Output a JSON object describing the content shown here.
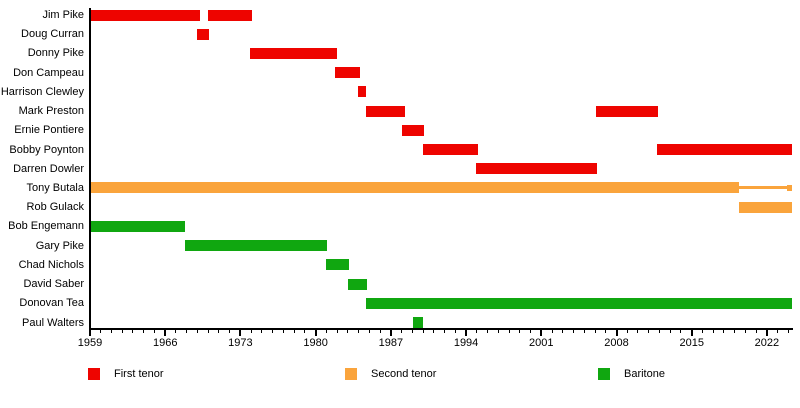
{
  "chart_data": {
    "type": "bar",
    "subtype": "timeline-gantt",
    "title": "",
    "x_axis": {
      "start_year": 1959,
      "end_year": 2024.3,
      "last_tick_year": 2024,
      "minor_tick_interval": 1,
      "major_ticks": [
        1959,
        1966,
        1973,
        1980,
        1987,
        1994,
        2001,
        2008,
        2015,
        2022
      ]
    },
    "legend": [
      {
        "key": "first_tenor",
        "label": "First tenor",
        "color": "#ee0400"
      },
      {
        "key": "second_tenor",
        "label": "Second tenor",
        "color": "#faa43c"
      },
      {
        "key": "baritone",
        "label": "Baritone",
        "color": "#10a710"
      }
    ],
    "rows": [
      {
        "name": "Jim Pike",
        "role": "first_tenor",
        "segments": [
          [
            1959.0,
            1969.25
          ],
          [
            1969.95,
            1974.05
          ]
        ]
      },
      {
        "name": "Doug Curran",
        "role": "first_tenor",
        "segments": [
          [
            1969.0,
            1970.05
          ]
        ]
      },
      {
        "name": "Donny Pike",
        "role": "first_tenor",
        "segments": [
          [
            1973.9,
            1982.0
          ]
        ]
      },
      {
        "name": "Don Campeau",
        "role": "first_tenor",
        "segments": [
          [
            1981.8,
            1984.15
          ]
        ]
      },
      {
        "name": "Harrison Clewley",
        "role": "first_tenor",
        "segments": [
          [
            1983.95,
            1984.7
          ]
        ]
      },
      {
        "name": "Mark Preston",
        "role": "first_tenor",
        "segments": [
          [
            1984.7,
            1988.3
          ],
          [
            2006.05,
            2011.85
          ]
        ]
      },
      {
        "name": "Ernie Pontiere",
        "role": "first_tenor",
        "segments": [
          [
            1988.0,
            1990.1
          ]
        ]
      },
      {
        "name": "Bobby Poynton",
        "role": "first_tenor",
        "segments": [
          [
            1989.95,
            1995.1
          ],
          [
            2011.75,
            2024.3
          ]
        ]
      },
      {
        "name": "Darren Dowler",
        "role": "first_tenor",
        "segments": [
          [
            1994.9,
            2006.2
          ]
        ]
      },
      {
        "name": "Tony Butala",
        "role": "second_tenor",
        "segments": [
          [
            1959.0,
            2019.4
          ]
        ],
        "line_segments": [
          [
            2019.4,
            2024.3
          ]
        ]
      },
      {
        "name": "Rob Gulack",
        "role": "second_tenor",
        "segments": [
          [
            2019.4,
            2024.3
          ]
        ]
      },
      {
        "name": "Bob Engemann",
        "role": "baritone",
        "segments": [
          [
            1959.0,
            1967.85
          ]
        ]
      },
      {
        "name": "Gary Pike",
        "role": "baritone",
        "segments": [
          [
            1967.85,
            1981.05
          ]
        ]
      },
      {
        "name": "Chad Nichols",
        "role": "baritone",
        "segments": [
          [
            1980.95,
            1983.1
          ]
        ]
      },
      {
        "name": "David Saber",
        "role": "baritone",
        "segments": [
          [
            1983.05,
            1984.75
          ]
        ]
      },
      {
        "name": "Donovan Tea",
        "role": "baritone",
        "segments": [
          [
            1984.7,
            2024.3
          ]
        ]
      },
      {
        "name": "Paul Walters",
        "role": "baritone",
        "segments": [
          [
            1989.05,
            1990.0
          ]
        ]
      }
    ]
  }
}
